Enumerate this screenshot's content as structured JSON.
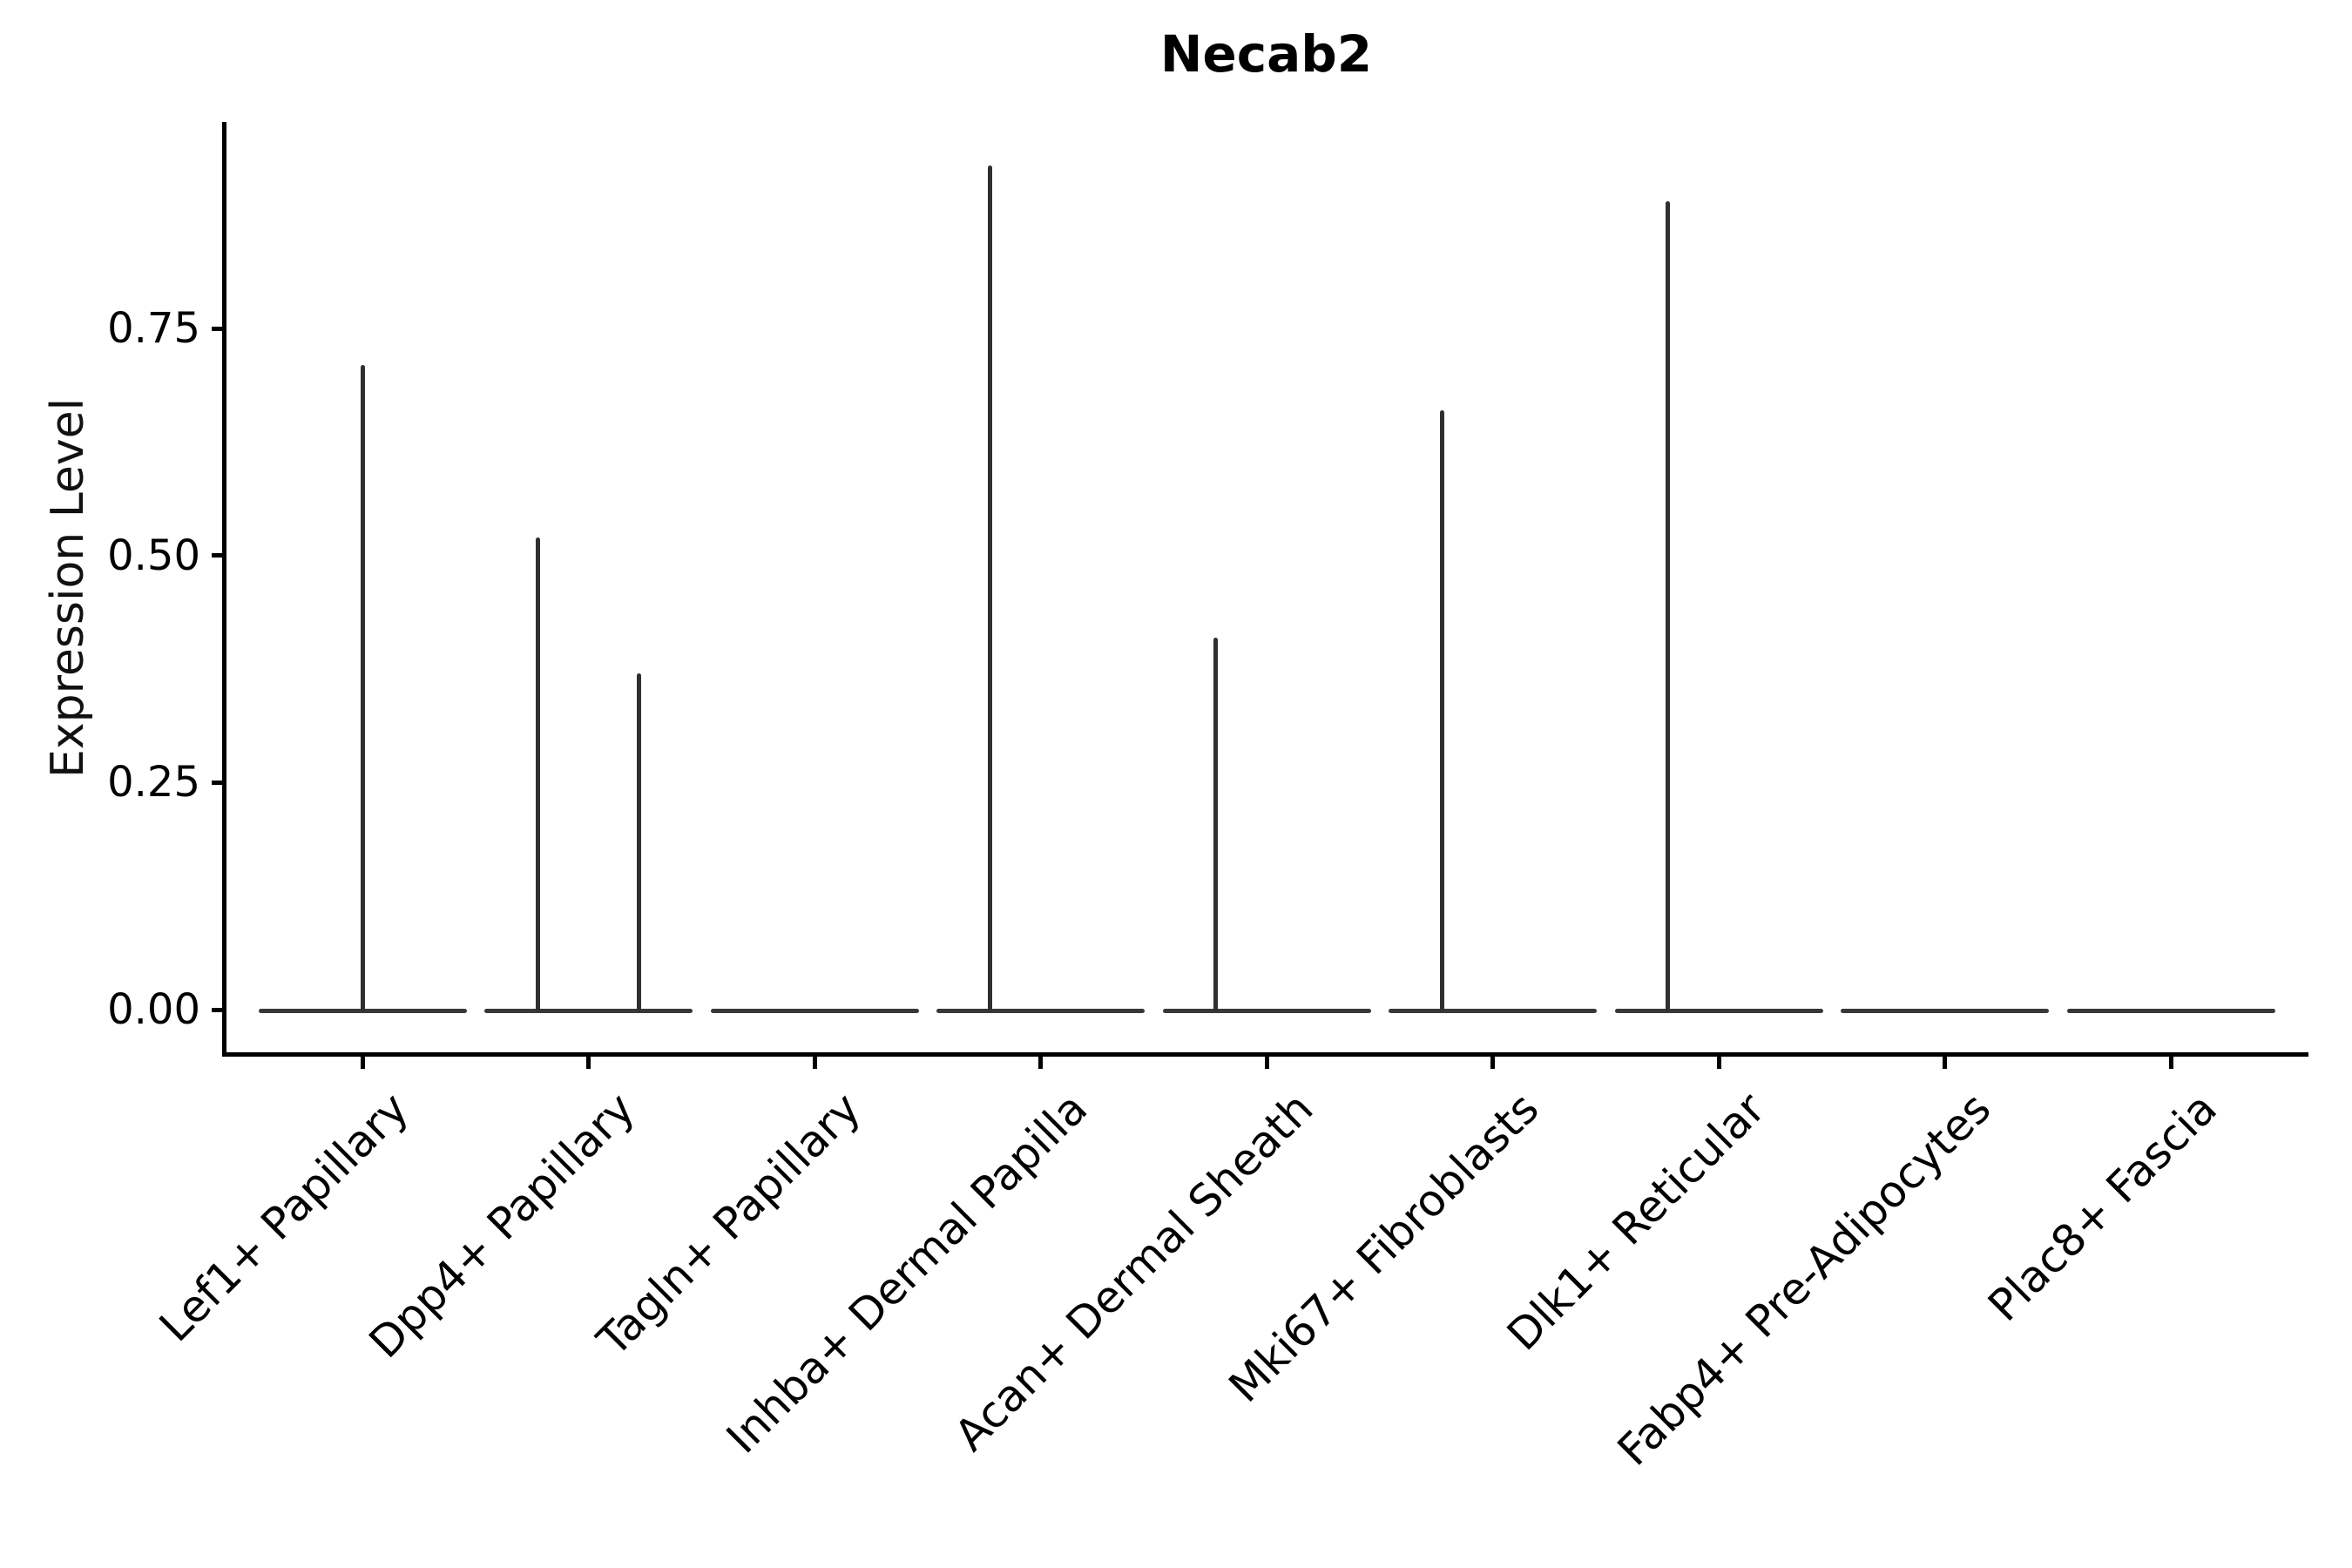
{
  "chart_data": {
    "type": "violin",
    "title": "Necab2",
    "xlabel": "",
    "ylabel": "Expression Level",
    "ylim": [
      0,
      0.98
    ],
    "grid": false,
    "legend": "none",
    "y_ticks": [
      {
        "value": 0.0,
        "label": "0.00"
      },
      {
        "value": 0.25,
        "label": "0.25"
      },
      {
        "value": 0.5,
        "label": "0.50"
      },
      {
        "value": 0.75,
        "label": "0.75"
      }
    ],
    "categories": [
      "Lef1+ Papillary",
      "Dpp4+ Papillary",
      "Tagln+ Papillary",
      "Inhba+ Dermal Papilla",
      "Acan+ Dermal Sheath",
      "Mki67+ Fibroblasts",
      "Dlk1+ Reticular",
      "Fabp4+ Pre-Adipocytes",
      "Plac8+ Fascia"
    ],
    "violins": [
      {
        "category": "Lef1+ Papillary",
        "baseline_value": 0,
        "spikes": [
          {
            "x_offset_frac": 0.0,
            "value": 0.71
          }
        ]
      },
      {
        "category": "Dpp4+ Papillary",
        "baseline_value": 0,
        "spikes": [
          {
            "x_offset_frac": -0.225,
            "value": 0.52
          },
          {
            "x_offset_frac": 0.225,
            "value": 0.37
          }
        ]
      },
      {
        "category": "Tagln+ Papillary",
        "baseline_value": 0,
        "spikes": []
      },
      {
        "category": "Inhba+ Dermal Papilla",
        "baseline_value": 0,
        "spikes": [
          {
            "x_offset_frac": -0.225,
            "value": 0.93
          }
        ]
      },
      {
        "category": "Acan+ Dermal Sheath",
        "baseline_value": 0,
        "spikes": [
          {
            "x_offset_frac": -0.225,
            "value": 0.41
          }
        ]
      },
      {
        "category": "Mki67+ Fibroblasts",
        "baseline_value": 0,
        "spikes": [
          {
            "x_offset_frac": -0.225,
            "value": 0.66
          }
        ]
      },
      {
        "category": "Dlk1+ Reticular",
        "baseline_value": 0,
        "spikes": [
          {
            "x_offset_frac": -0.225,
            "value": 0.89
          }
        ]
      },
      {
        "category": "Fabp4+ Pre-Adipocytes",
        "baseline_value": 0,
        "spikes": []
      },
      {
        "category": "Plac8+ Fascia",
        "baseline_value": 0,
        "spikes": []
      }
    ],
    "colors": {
      "line": "#2f2f2f",
      "spine": "#000000",
      "text": "#000000",
      "background": "#ffffff"
    }
  }
}
